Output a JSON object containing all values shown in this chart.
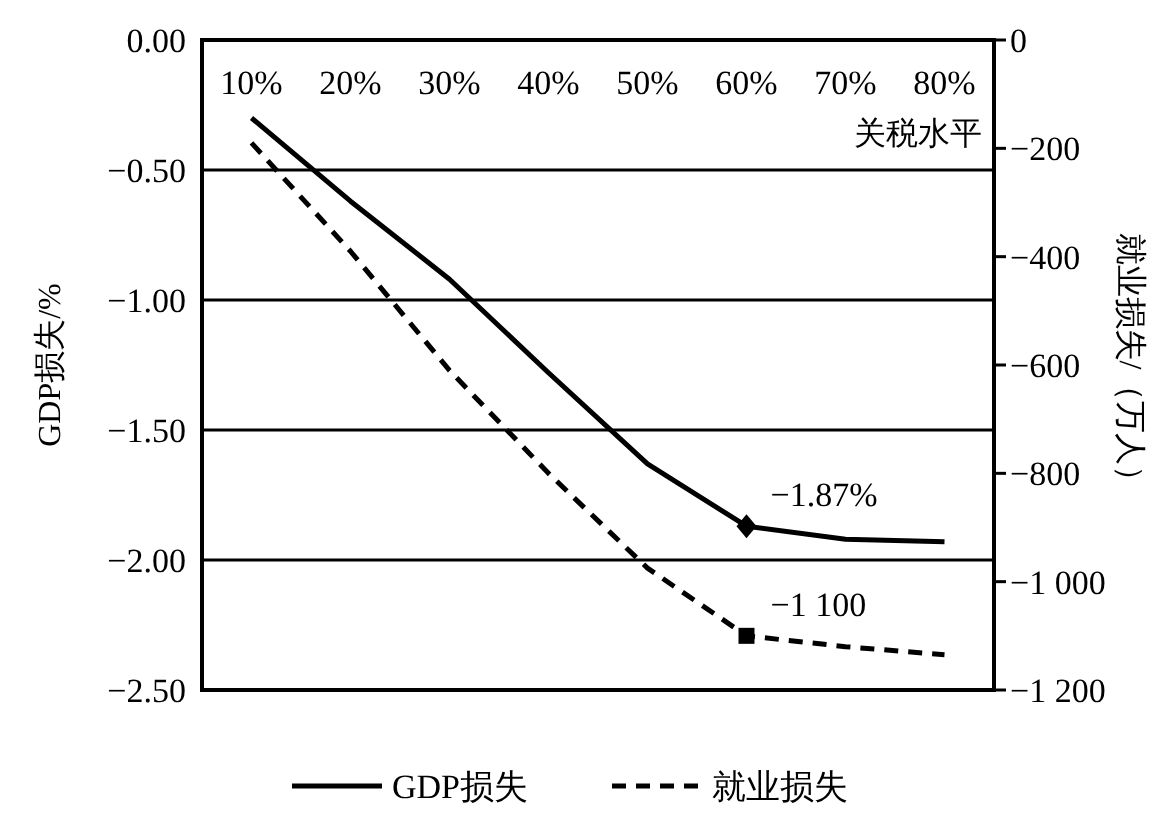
{
  "chart_data": {
    "type": "line",
    "xlabel": "关税水平",
    "ylabel": "GDP损失/%",
    "y2label": "就业损失/（万人）",
    "categories": [
      "10%",
      "20%",
      "30%",
      "40%",
      "50%",
      "60%",
      "70%",
      "80%"
    ],
    "series": [
      {
        "name": "GDP损失",
        "color": "#000000",
        "line_style": "solid",
        "values": [
          -0.3,
          -0.62,
          -0.92,
          -1.28,
          -1.63,
          -1.87,
          -1.92,
          -1.93
        ],
        "value_labels": [
          null,
          null,
          null,
          null,
          null,
          "−1.87%",
          null,
          null
        ]
      },
      {
        "name": "就业损失",
        "color": "#000000",
        "line_style": "dashed",
        "axis": "y2",
        "values": [
          -190,
          -390,
          -610,
          -800,
          -975,
          -1100,
          -1120,
          -1135
        ],
        "value_labels": [
          null,
          null,
          null,
          null,
          null,
          "−1 100",
          null,
          null
        ]
      },
      {
        "type": "scatter",
        "color": "#000000",
        "marker": "diamond",
        "x": [
          "60%"
        ],
        "values": [
          -1.87
        ]
      },
      {
        "type": "scatter",
        "color": "#000000",
        "marker": "square",
        "axis": "y2",
        "x": [
          "60%"
        ],
        "values": [
          -1100
        ]
      }
    ],
    "ylim": [
      -2.5,
      0
    ],
    "yticks": [
      {
        "value": 0,
        "label": "0.00"
      },
      {
        "value": -0.5,
        "label": "−0.50"
      },
      {
        "value": -1,
        "label": "−1.00"
      },
      {
        "value": -1.5,
        "label": "−1.50"
      },
      {
        "value": -2,
        "label": "−2.00"
      },
      {
        "value": -2.5,
        "label": "−2.50"
      }
    ],
    "y2lim": [
      -1200,
      0
    ],
    "y2ticks": [
      0,
      {
        "value": -200,
        "label": "−200"
      },
      {
        "value": -400,
        "label": "−400"
      },
      {
        "value": -600,
        "label": "−600"
      },
      {
        "value": -800,
        "label": "−800"
      },
      {
        "value": -1000,
        "label": "−1 000"
      },
      {
        "value": -1200,
        "label": "−1 200"
      }
    ],
    "grid": "y",
    "legend": "bottom"
  }
}
